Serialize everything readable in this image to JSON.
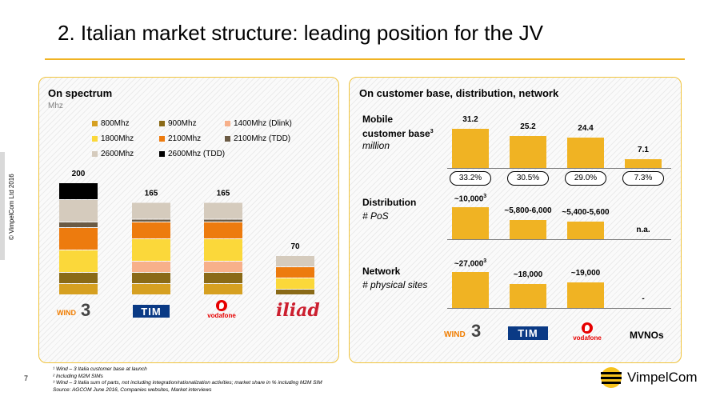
{
  "page": {
    "title": "2. Italian market structure: leading position for the JV",
    "copyright": "© VimpelCom Ltd 2016",
    "page_number": "7",
    "brand": "VimpelCom",
    "footnotes": [
      "¹ Wind – 3 Italia customer base at launch",
      "² Including M2M SIMs",
      "³ Wind – 3 Italia sum of parts, not including integration/rationalization  activities;  market share in % including M2M SIM",
      "Source: AGCOM June 2016, Companies websites,  Market interviews"
    ]
  },
  "left_panel": {
    "title": "On spectrum",
    "subtitle": "Mhz"
  },
  "right_panel": {
    "title": "On customer base, distribution, network",
    "rows": {
      "mobile": {
        "label_1": "Mobile",
        "label_2": "customer base",
        "label_sup": "3",
        "sub": "million"
      },
      "distribution": {
        "label": "Distribution",
        "sub": "# PoS"
      },
      "network": {
        "label": "Network",
        "sub": "# physical sites"
      }
    },
    "operators": [
      "WIND 3",
      "TIM",
      "vodafone",
      "MVNOs"
    ]
  },
  "logos": {
    "wind": "WIND",
    "three": "3",
    "tim": "TIM",
    "vodafone": "vodafone",
    "iliad": "iliad",
    "mvnos": "MVNOs"
  },
  "colors": {
    "accent": "#f0b323",
    "bar": "#f0b323",
    "tim_blue": "#0a3a85",
    "vodafone_red": "#e60000",
    "iliad_red": "#cc1f2f"
  },
  "chart_data": [
    {
      "type": "bar",
      "stacked": true,
      "title": "On spectrum",
      "ylabel": "Mhz",
      "categories": [
        "WIND 3",
        "TIM",
        "vodafone",
        "iliad"
      ],
      "totals": [
        200,
        165,
        165,
        70
      ],
      "series": [
        {
          "name": "800Mhz",
          "color": "#d6a021",
          "values": [
            20,
            20,
            20,
            0
          ]
        },
        {
          "name": "900Mhz",
          "color": "#8a6a17",
          "values": [
            20,
            20,
            20,
            10
          ]
        },
        {
          "name": "1400Mhz (Dlink)",
          "color": "#f7b08a",
          "values": [
            0,
            20,
            20,
            0
          ]
        },
        {
          "name": "1800Mhz",
          "color": "#fbd83a",
          "values": [
            40,
            40,
            40,
            20
          ]
        },
        {
          "name": "2100Mhz",
          "color": "#ed7b0e",
          "values": [
            40,
            30,
            30,
            20
          ]
        },
        {
          "name": "2100Mhz (TDD)",
          "color": "#6b5b45",
          "values": [
            10,
            5,
            5,
            0
          ]
        },
        {
          "name": "2600Mhz",
          "color": "#d5cbbd",
          "values": [
            40,
            30,
            30,
            20
          ]
        },
        {
          "name": "2600Mhz (TDD)",
          "color": "#000000",
          "values": [
            30,
            0,
            0,
            0
          ]
        }
      ],
      "legend": "top",
      "ylim": [
        0,
        200
      ],
      "grid": false
    },
    {
      "type": "bar",
      "title": "Mobile customer base",
      "ylabel": "million",
      "categories": [
        "WIND 3",
        "TIM",
        "vodafone",
        "MVNOs"
      ],
      "values": [
        31.2,
        25.2,
        24.4,
        7.1
      ],
      "value_labels": [
        "31.2",
        "25.2",
        "24.4",
        "7.1"
      ],
      "market_share": [
        "33.2%",
        "30.5%",
        "29.0%",
        "7.3%"
      ],
      "ylim": [
        0,
        31.2
      ]
    },
    {
      "type": "bar",
      "title": "Distribution",
      "ylabel": "# PoS",
      "categories": [
        "WIND 3",
        "TIM",
        "vodafone",
        "MVNOs"
      ],
      "values": [
        10000,
        5900,
        5500,
        null
      ],
      "value_labels": [
        "~10,000",
        "~5,800-6,000",
        "~5,400-5,600",
        "n.a."
      ],
      "label_sup": [
        "3",
        "",
        "",
        ""
      ],
      "ylim": [
        0,
        10000
      ]
    },
    {
      "type": "bar",
      "title": "Network",
      "ylabel": "# physical sites",
      "categories": [
        "WIND 3",
        "TIM",
        "vodafone",
        "MVNOs"
      ],
      "values": [
        27000,
        18000,
        19000,
        0
      ],
      "value_labels": [
        "~27,000",
        "~18,000",
        "~19,000",
        "-"
      ],
      "label_sup": [
        "3",
        "",
        "",
        ""
      ],
      "ylim": [
        0,
        27000
      ]
    }
  ]
}
